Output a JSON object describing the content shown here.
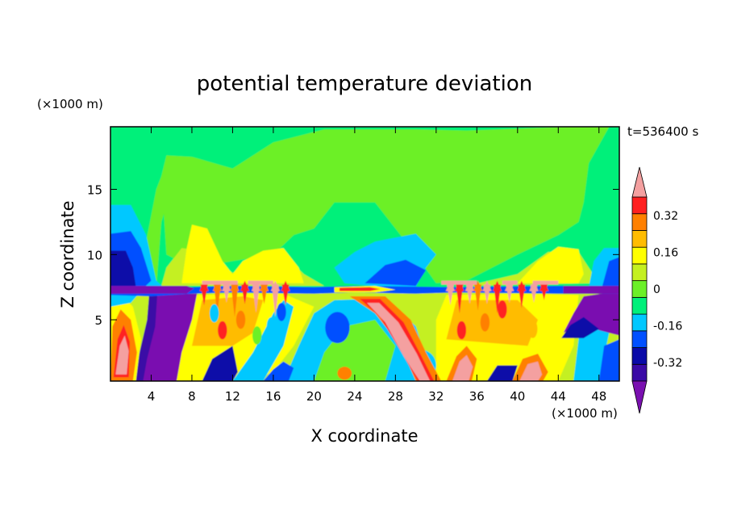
{
  "chart_data": {
    "type": "heatmap",
    "title": "potential temperature deviation",
    "xlabel": "X coordinate",
    "ylabel": "Z coordinate",
    "x_unit_label": "(×1000 m)",
    "y_unit_label": "(×1000 m)",
    "time_label": "t=536400 s",
    "xlim": [
      0,
      50
    ],
    "ylim": [
      0.3,
      19.8
    ],
    "x_ticks": [
      4,
      8,
      12,
      16,
      20,
      24,
      28,
      32,
      36,
      40,
      44,
      48
    ],
    "y_ticks": [
      5,
      10,
      15
    ],
    "colorbar": {
      "levels": [
        -0.44,
        -0.4,
        -0.32,
        -0.24,
        -0.16,
        -0.08,
        0,
        0.08,
        0.16,
        0.24,
        0.32,
        0.4,
        0.44
      ],
      "colors": [
        "#7a10b0",
        "#3a0aa6",
        "#0a0aa8",
        "#0050ff",
        "#00c8ff",
        "#00f07a",
        "#6cf028",
        "#c4f020",
        "#ffff00",
        "#ffbc00",
        "#ff8000",
        "#ff2020",
        "#f4a0a0"
      ],
      "labels": [
        "0.32",
        "0.16",
        "0",
        "-0.16",
        "-0.32"
      ],
      "label_values": [
        0.32,
        0.16,
        0,
        -0.16,
        -0.32
      ],
      "extend": "both"
    }
  }
}
